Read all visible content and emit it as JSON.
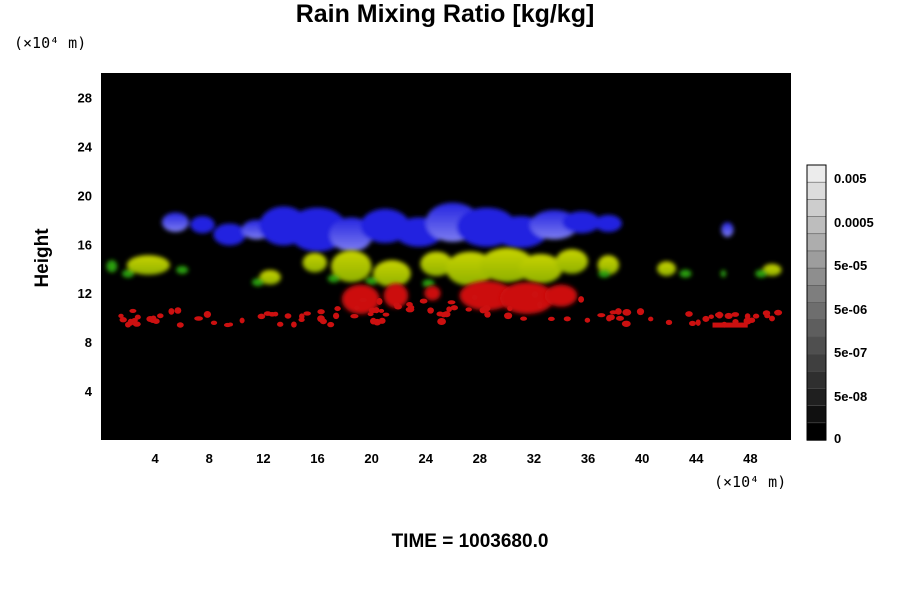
{
  "title": "Rain Mixing Ratio [kg/kg]",
  "y_unit": "(×10⁴ m)",
  "x_unit": "(×10⁴ m)",
  "time_label": "TIME = 1003680.0",
  "chart_data": {
    "type": "heatmap",
    "title": "Rain Mixing Ratio [kg/kg]",
    "xlabel": "",
    "ylabel": "Height",
    "x_unit": "×10⁴ m",
    "y_unit": "×10⁴ m",
    "xlim": [
      0,
      51
    ],
    "ylim": [
      0,
      30
    ],
    "x_ticks": [
      4,
      8,
      12,
      16,
      20,
      24,
      28,
      32,
      36,
      40,
      44,
      48
    ],
    "y_ticks": [
      4,
      8,
      12,
      16,
      20,
      24,
      28
    ],
    "background": "#000000",
    "colorbar": {
      "labels": [
        "0.005",
        "0.0005",
        "5e-05",
        "5e-06",
        "5e-07",
        "5e-08",
        "0"
      ],
      "min_label": "0"
    },
    "layers": [
      {
        "color": "#1c1cd8",
        "height_range": [
          15.5,
          19.5
        ],
        "x_range": [
          3,
          39
        ],
        "description_color": "blue"
      },
      {
        "color": "#a8c800",
        "height_range": [
          12.5,
          16
        ],
        "x_range": [
          1,
          51
        ],
        "description_color": "yellow-green"
      },
      {
        "color": "#cc1414",
        "height_range": [
          9,
          13
        ],
        "x_range": [
          1,
          51
        ],
        "description_color": "red"
      }
    ]
  },
  "colors": {
    "blue": "#2424e0",
    "blue_light": "#7d7df0",
    "yellow": "#c8d400",
    "green": "#2aa010",
    "red": "#cc1010",
    "plot_bg": "#000000"
  }
}
